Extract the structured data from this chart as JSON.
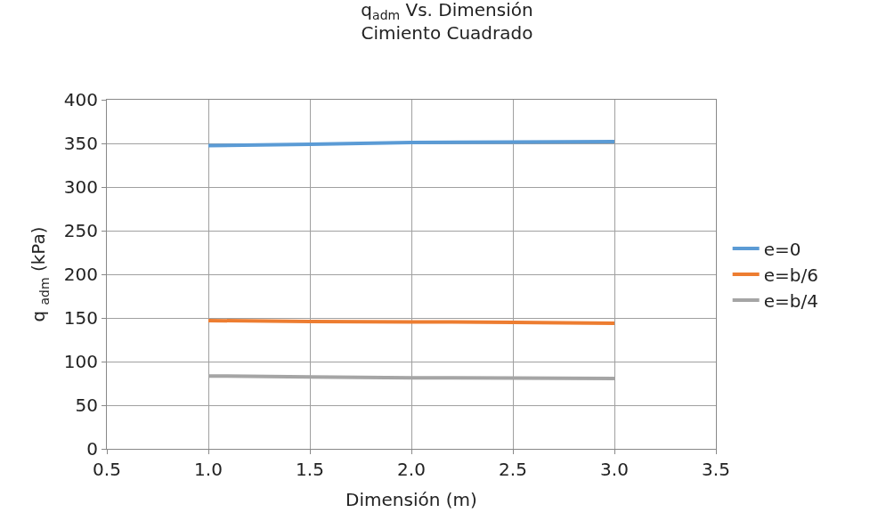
{
  "chart_data": {
    "type": "line",
    "title": "q$_{adm}$ Vs. Dimensión",
    "subtitle": "Cimiento Cuadrado",
    "xlabel": "Dimensión (m)",
    "ylabel": "q $_{adm}$ (kPa)",
    "x": [
      1.0,
      1.5,
      2.0,
      2.5,
      3.0
    ],
    "series": [
      {
        "name": "e=0",
        "color": "#5b9bd5",
        "values": [
          347.5,
          349,
          351,
          351.5,
          352
        ]
      },
      {
        "name": "e=b/6",
        "color": "#ed7d31",
        "values": [
          147,
          146,
          145.5,
          145,
          144
        ]
      },
      {
        "name": "e=b/4",
        "color": "#a5a5a5",
        "values": [
          83.5,
          82.5,
          81.5,
          81,
          80.5
        ]
      }
    ],
    "xlim": [
      0.5,
      3.5
    ],
    "xticks": [
      {
        "value": 0.5,
        "label": "0.5"
      },
      {
        "value": 1.0,
        "label": "1.0"
      },
      {
        "value": 1.5,
        "label": "1.5"
      },
      {
        "value": 2.0,
        "label": "2.0"
      },
      {
        "value": 2.5,
        "label": "2.5"
      },
      {
        "value": 3.0,
        "label": "3.0"
      },
      {
        "value": 3.5,
        "label": "3.5"
      }
    ],
    "ylim": [
      0,
      400
    ],
    "yticks": [
      0,
      50,
      100,
      150,
      200,
      250,
      300,
      350,
      400
    ],
    "grid": true,
    "legend": "right",
    "marker": "none",
    "line_style": "solid"
  }
}
